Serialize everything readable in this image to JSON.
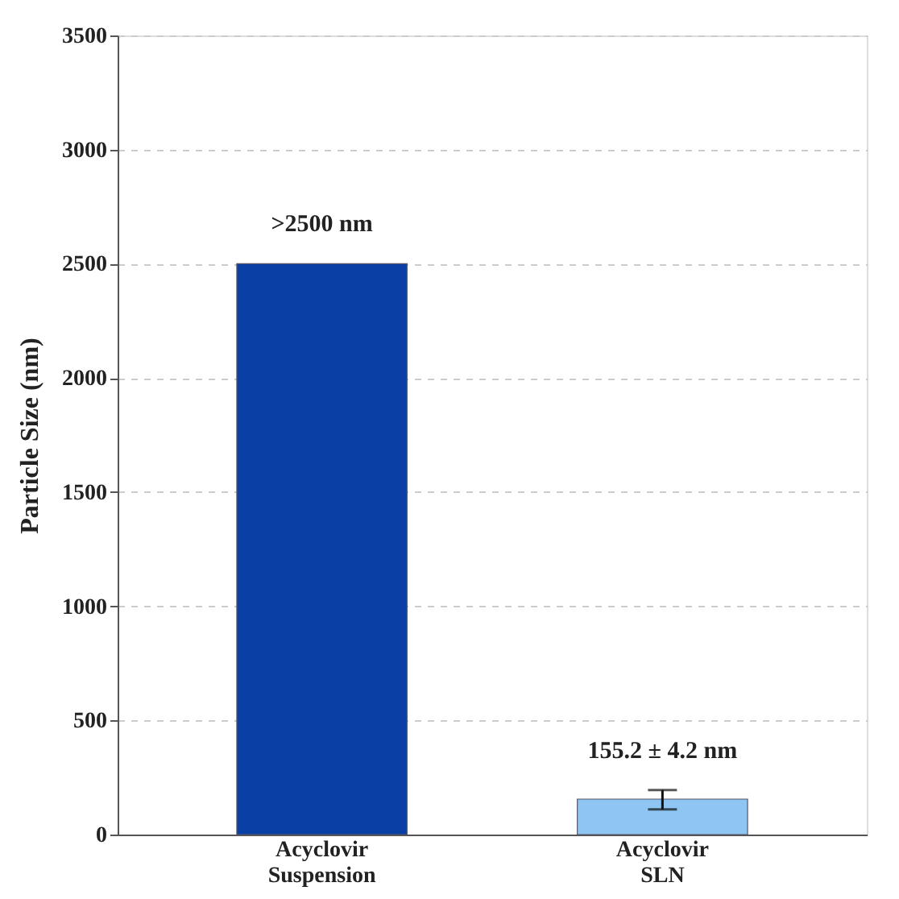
{
  "chart_data": {
    "type": "bar",
    "ylabel": "Particle Size (nm)",
    "categories": [
      "Acyclovir\nSuspension",
      "Acyclovir\nSLN"
    ],
    "values": [
      2500,
      155.2
    ],
    "colors": [
      "#0a3fa6",
      "#8ec5f2"
    ],
    "value_labels": [
      ">2500 nm",
      "155.2 ± 4.2 nm"
    ],
    "errors": [
      null,
      [
        110,
        195
      ]
    ],
    "ylim": [
      0,
      3500
    ],
    "yticks": [
      0,
      500,
      1000,
      1500,
      2000,
      2500,
      3000,
      3500
    ],
    "grid": "y"
  }
}
